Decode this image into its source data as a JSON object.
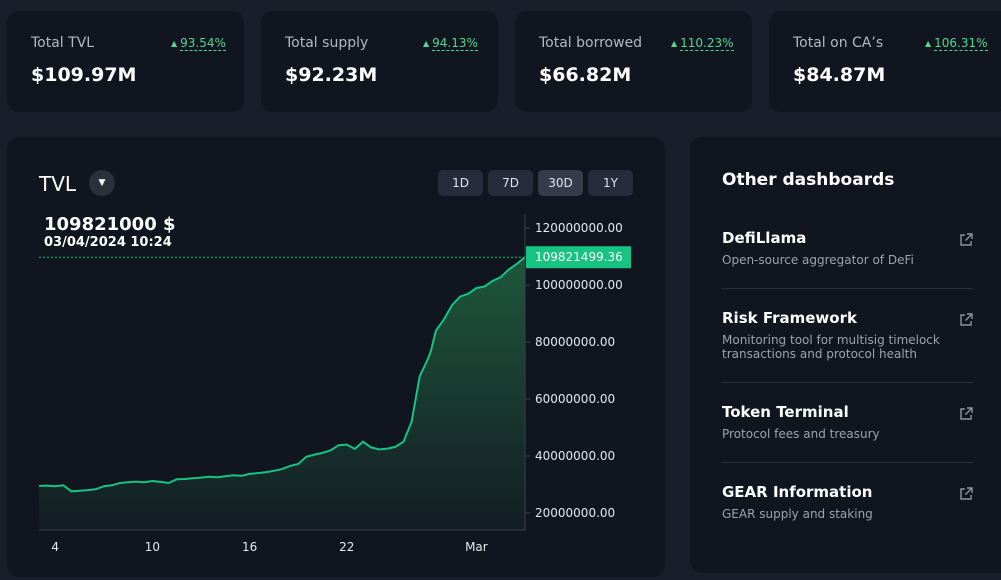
{
  "stats": [
    {
      "label": "Total TVL",
      "change": "93.54%",
      "value": "$109.97M"
    },
    {
      "label": "Total supply",
      "change": "94.13%",
      "value": "$92.23M"
    },
    {
      "label": "Total borrowed",
      "change": "110.23%",
      "value": "$66.82M"
    },
    {
      "label": "Total on CA’s",
      "change": "106.31%",
      "value": "$84.87M"
    }
  ],
  "chart": {
    "title": "TVL",
    "dropdown_icon": "caret-down-icon",
    "ranges": [
      "1D",
      "7D",
      "30D",
      "1Y"
    ],
    "active_range": "30D",
    "tooltip_value": "109821000 $",
    "tooltip_date": "03/04/2024 10:24",
    "current_label": "109821499.36"
  },
  "chart_data": {
    "type": "area",
    "y_ticks": [
      "120000000.00",
      "100000000.00",
      "80000000.00",
      "60000000.00",
      "40000000.00",
      "20000000.00"
    ],
    "x_ticks": [
      "4",
      "10",
      "16",
      "22",
      "Mar"
    ],
    "x_range": [
      3,
      33
    ],
    "ylim": [
      14000000,
      125000000
    ],
    "x": [
      3,
      3.5,
      4,
      4.5,
      5,
      5.5,
      6,
      6.5,
      7,
      7.5,
      8,
      8.5,
      9,
      9.5,
      10,
      10.5,
      11,
      11.5,
      12,
      12.5,
      13,
      13.5,
      14,
      14.5,
      15,
      15.5,
      16,
      16.5,
      17,
      17.5,
      18,
      18.5,
      19,
      19.5,
      20,
      20.5,
      21,
      21.5,
      22,
      22.5,
      23,
      23.5,
      24,
      24.5,
      25,
      25.5,
      26,
      26.5,
      27,
      27.2,
      27.5,
      28,
      28.5,
      29,
      29.5,
      30,
      30.5,
      31,
      31.5,
      32,
      32.5,
      33
    ],
    "values": [
      29500000,
      29600000,
      29400000,
      29700000,
      27600000,
      27800000,
      28000000,
      28300000,
      29400000,
      29700000,
      30500000,
      30800000,
      31000000,
      30800000,
      31200000,
      30900000,
      30500000,
      31800000,
      31900000,
      32200000,
      32400000,
      32700000,
      32500000,
      32900000,
      33200000,
      33000000,
      33700000,
      34000000,
      34300000,
      34800000,
      35400000,
      36500000,
      37200000,
      39700000,
      40500000,
      41100000,
      42000000,
      43800000,
      44000000,
      42500000,
      45000000,
      43000000,
      42300000,
      42600000,
      43200000,
      45000000,
      52000000,
      68000000,
      74000000,
      77000000,
      84000000,
      88000000,
      93000000,
      96000000,
      97000000,
      99000000,
      99500000,
      101500000,
      102800000,
      105500000,
      107500000,
      109821499.36
    ],
    "series": [
      {
        "name": "",
        "color": "#16c383"
      }
    ]
  },
  "dashboards": {
    "title": "Other dashboards",
    "items": [
      {
        "title": "DefiLlama",
        "desc": "Open-source aggregator of DeFi"
      },
      {
        "title": "Risk Framework",
        "desc": "Monitoring tool for multisig timelock transactions and protocol health"
      },
      {
        "title": "Token Terminal",
        "desc": "Protocol fees and treasury"
      },
      {
        "title": "GEAR Information",
        "desc": "GEAR supply and staking"
      }
    ],
    "link_icon": "external-link-icon"
  }
}
